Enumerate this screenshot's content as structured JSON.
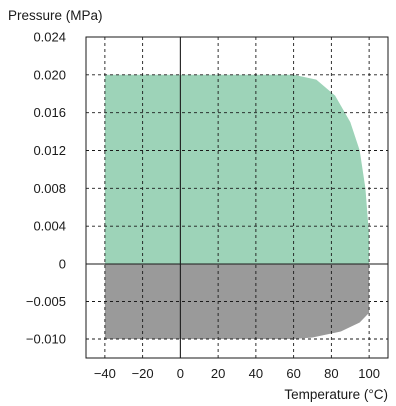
{
  "chart_data": {
    "type": "area",
    "xlabel": "Temperature (°C)",
    "ylabel": "Pressure (MPa)",
    "xlim": [
      -50,
      110
    ],
    "ylim": [
      -0.012,
      0.024
    ],
    "x_ticks": [
      -40,
      -20,
      0,
      20,
      40,
      60,
      80,
      100
    ],
    "x_tick_labels": [
      "−40",
      "−20",
      "0",
      "20",
      "40",
      "60",
      "80",
      "100"
    ],
    "y_ticks": [
      0.024,
      0.02,
      0.016,
      0.012,
      0.008,
      0.004,
      0,
      -0.005,
      -0.01
    ],
    "y_tick_labels": [
      "0.024",
      "0.020",
      "0.016",
      "0.012",
      "0.008",
      "0.004",
      "0",
      "−0.005",
      "−0.010"
    ],
    "grid": true,
    "grid_style": "dashed",
    "series": [
      {
        "region": "positive-pressure",
        "color": "#9dd3b8",
        "x_range": [
          -40,
          100
        ],
        "y_range": [
          0,
          0.02
        ],
        "boundary": [
          [
            -40,
            0
          ],
          [
            -40,
            0.02
          ],
          [
            60,
            0.02
          ],
          [
            72,
            0.0195
          ],
          [
            82,
            0.0178
          ],
          [
            90,
            0.015
          ],
          [
            95,
            0.012
          ],
          [
            98,
            0.008
          ],
          [
            100,
            0.003
          ],
          [
            100,
            0
          ]
        ]
      },
      {
        "region": "negative-pressure",
        "color": "#9a9a9a",
        "x_range": [
          -40,
          100
        ],
        "y_range": [
          -0.01,
          0
        ],
        "boundary": [
          [
            -40,
            0
          ],
          [
            100,
            0
          ],
          [
            100,
            -0.0065
          ],
          [
            95,
            -0.0078
          ],
          [
            85,
            -0.009
          ],
          [
            70,
            -0.0098
          ],
          [
            60,
            -0.01
          ],
          [
            -40,
            -0.01
          ]
        ]
      }
    ]
  }
}
